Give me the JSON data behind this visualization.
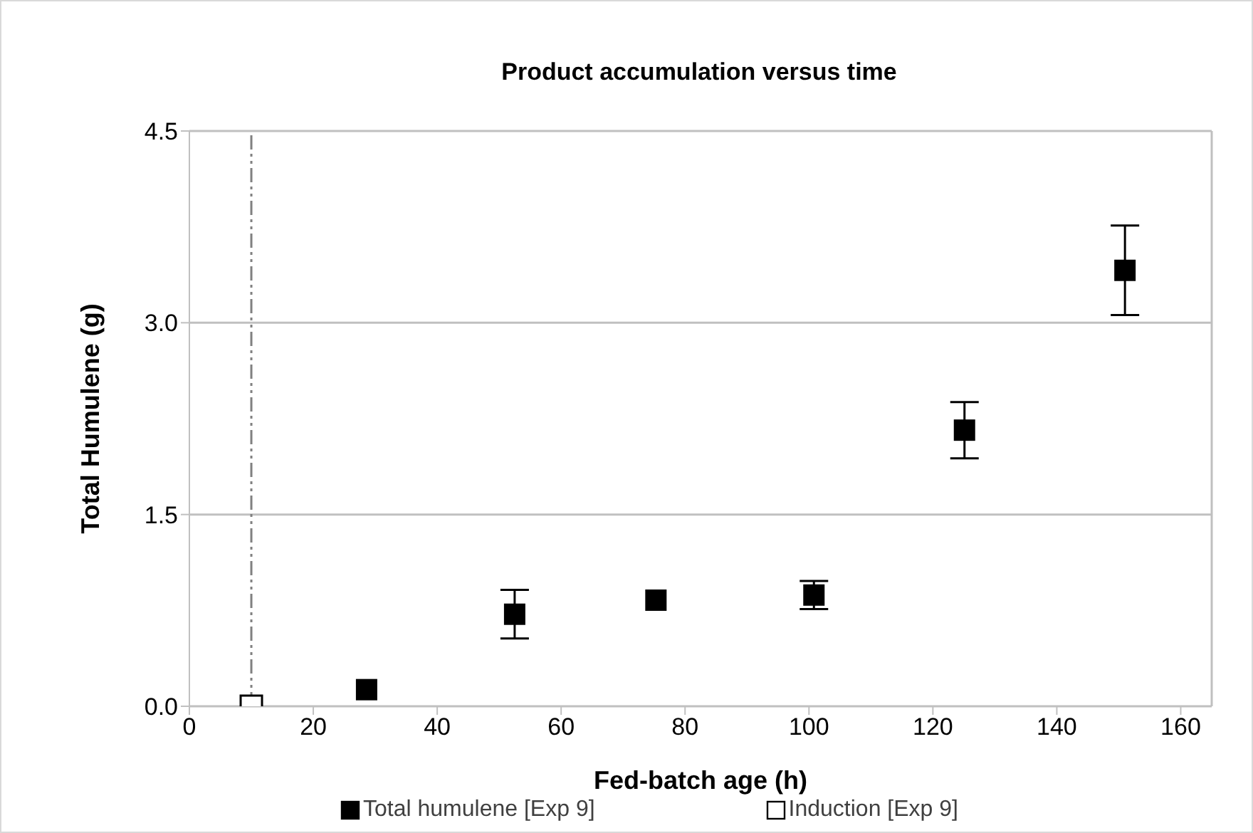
{
  "chart_data": {
    "type": "scatter",
    "title": "Product accumulation versus time",
    "xlabel": "Fed-batch age (h)",
    "ylabel": "Total Humulene (g)",
    "series": [
      {
        "name": "Total humulene [Exp 9]",
        "color": "#000000",
        "x": [
          28.6,
          52.5,
          75.3,
          100.8,
          125.1,
          151
        ],
        "values": [
          0.13,
          0.72,
          0.83,
          0.87,
          2.16,
          3.41
        ],
        "errors": [
          null,
          0.19,
          null,
          0.11,
          0.22,
          0.35
        ]
      },
      {
        "name": "Induction [Exp 9]",
        "color": "#000000",
        "x": [
          10
        ],
        "values": [
          0
        ]
      }
    ],
    "xlim": [
      0,
      165
    ],
    "xticks": [
      0,
      20,
      40,
      60,
      80,
      100,
      120,
      140,
      160
    ],
    "ylim": [
      0,
      4.5
    ],
    "yticks": [
      {
        "value": 0,
        "label": "0.0"
      },
      {
        "value": 1.5,
        "label": "1.5"
      },
      {
        "value": 3,
        "label": "3.0"
      },
      {
        "value": 4.5,
        "label": "4.5"
      }
    ],
    "ref_lines": [
      {
        "axis": "x",
        "value": 10,
        "color": "#808080",
        "line_style": "dashed"
      }
    ],
    "grid": "y",
    "legend": "bottom",
    "marker": "square"
  }
}
